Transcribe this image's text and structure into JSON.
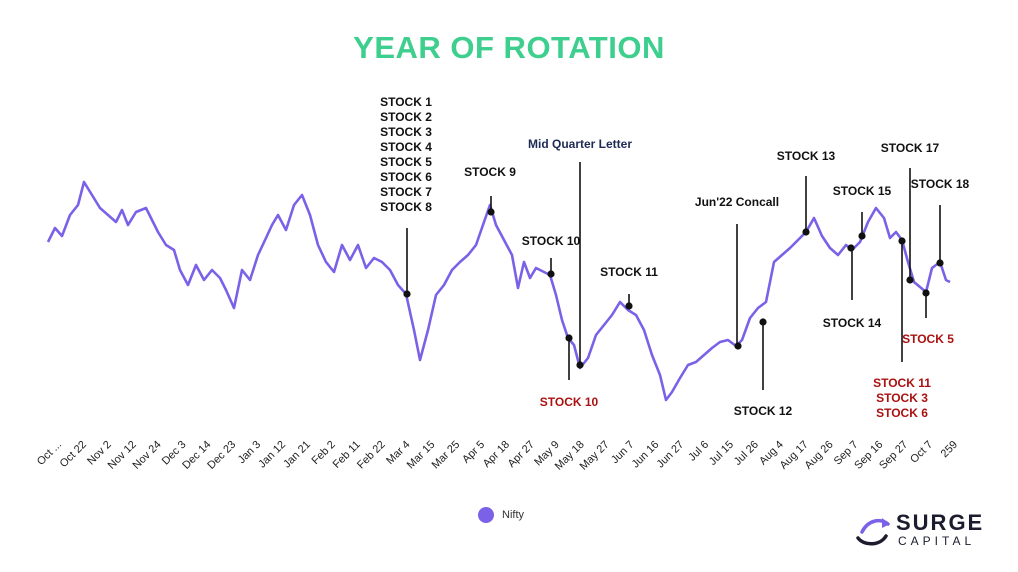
{
  "chart_data": {
    "type": "line",
    "title": "YEAR OF ROTATION",
    "xlabel": "",
    "ylabel": "",
    "grid": false,
    "legend_position": "bottom-center",
    "series": [
      {
        "name": "Nifty",
        "color": "#7b61e8",
        "x": [
          0,
          10,
          20,
          30,
          40,
          50,
          60,
          70,
          80,
          90,
          100,
          110,
          120,
          130,
          140,
          150,
          160,
          170,
          180,
          190,
          200,
          210,
          220,
          230,
          240,
          250,
          259
        ],
        "y": [
          242,
          220,
          183,
          205,
          215,
          210,
          255,
          280,
          300,
          255,
          208,
          225,
          200,
          245,
          260,
          265,
          290,
          350,
          300,
          270,
          240,
          212,
          280,
          245,
          330,
          220,
          285
        ]
      }
    ],
    "x_tick_labels": [
      "Oct ...",
      "Oct 22",
      "Nov 2",
      "Nov 12",
      "Nov 24",
      "Dec 3",
      "Dec 14",
      "Dec 23",
      "Jan 3",
      "Jan 12",
      "Jan 21",
      "Feb 2",
      "Feb 11",
      "Feb 22",
      "Mar 4",
      "Mar 15",
      "Mar 25",
      "Apr 5",
      "Apr 18",
      "Apr 27",
      "May 9",
      "May 18",
      "May 27",
      "Jun 7",
      "Jun 16",
      "Jun 27",
      "Jul 6",
      "Jul 15",
      "Jul 26",
      "Aug 4",
      "Aug 17",
      "Aug 26",
      "Sep 7",
      "Sep 16",
      "Sep 27",
      "Oct 7",
      "259"
    ],
    "annotations": [
      {
        "lines": [
          "STOCK 1",
          "STOCK 2",
          "STOCK 3",
          "STOCK 4",
          "STOCK 5",
          "STOCK 6",
          "STOCK 7",
          "STOCK 8"
        ],
        "color": "#111111",
        "x_frac": 0.4048
      },
      {
        "lines": [
          "STOCK 9"
        ],
        "color": "#111111",
        "x_frac": 0.4917
      },
      {
        "lines": [
          "Mid Quarter Letter"
        ],
        "color": "#1d2b55",
        "x_frac": 0.5833
      },
      {
        "lines": [
          "STOCK 10"
        ],
        "color": "#111111",
        "x_frac": 0.5548
      },
      {
        "lines": [
          "STOCK 10"
        ],
        "color": "#aa1111",
        "x_frac": 0.575
      },
      {
        "lines": [
          "STOCK 11"
        ],
        "color": "#111111",
        "x_frac": 0.6429
      },
      {
        "lines": [
          "Jun'22 Concall"
        ],
        "color": "#111111",
        "x_frac": 0.7667
      },
      {
        "lines": [
          "STOCK 12"
        ],
        "color": "#111111",
        "x_frac": 0.7964
      },
      {
        "lines": [
          "STOCK 13"
        ],
        "color": "#111111",
        "x_frac": 0.844
      },
      {
        "lines": [
          "STOCK 15"
        ],
        "color": "#111111",
        "x_frac": 0.9024
      },
      {
        "lines": [
          "STOCK 14"
        ],
        "color": "#111111",
        "x_frac": 0.8917
      },
      {
        "lines": [
          "STOCK 17"
        ],
        "color": "#111111",
        "x_frac": 0.9619
      },
      {
        "lines": [
          "STOCK 18"
        ],
        "color": "#111111",
        "x_frac": 0.9917
      },
      {
        "lines": [
          "STOCK 5"
        ],
        "color": "#aa1111",
        "x_frac": 0.9429
      },
      {
        "lines": [
          "STOCK 11",
          "STOCK 3",
          "STOCK 6"
        ],
        "color": "#aa1111",
        "x_frac": 0.9405
      }
    ]
  },
  "legend": {
    "label": "Nifty"
  },
  "logo": {
    "name": "SURGE",
    "sub": "CAPITAL"
  }
}
